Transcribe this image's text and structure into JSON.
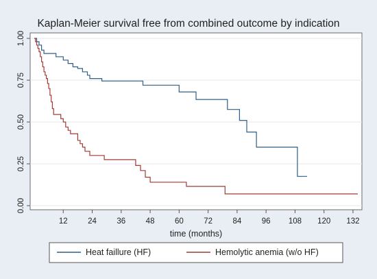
{
  "chart_data": {
    "type": "line",
    "title": "Kaplan-Meier survival free from combined outcome by indication",
    "xlabel": "time (months)",
    "ylabel": "",
    "xlim": [
      0,
      134
    ],
    "ylim": [
      0,
      1
    ],
    "x_ticks": [
      12,
      24,
      36,
      48,
      60,
      72,
      84,
      96,
      108,
      120,
      132
    ],
    "y_ticks": [
      0,
      0.25,
      0.5,
      0.75,
      1
    ],
    "y_tick_labels": [
      "0.00",
      "0.25",
      "0.50",
      "0.75",
      "1.00"
    ],
    "grid": true,
    "legend_position": "bottom",
    "series": [
      {
        "name": "Heat faillure (HF)",
        "color": "#2e5e8a",
        "points": [
          [
            0,
            1.0
          ],
          [
            1,
            0.98
          ],
          [
            2,
            0.96
          ],
          [
            3,
            0.93
          ],
          [
            4,
            0.91
          ],
          [
            9,
            0.89
          ],
          [
            12,
            0.87
          ],
          [
            14,
            0.85
          ],
          [
            16,
            0.83
          ],
          [
            18,
            0.82
          ],
          [
            20,
            0.8
          ],
          [
            22,
            0.78
          ],
          [
            23,
            0.76
          ],
          [
            28,
            0.745
          ],
          [
            45,
            0.72
          ],
          [
            60,
            0.68
          ],
          [
            67,
            0.635
          ],
          [
            80,
            0.575
          ],
          [
            85,
            0.51
          ],
          [
            88,
            0.44
          ],
          [
            92,
            0.35
          ],
          [
            109,
            0.175
          ],
          [
            113,
            0.175
          ]
        ]
      },
      {
        "name": "Hemolytic anemia (w/o HF)",
        "color": "#a23a35",
        "points": [
          [
            0,
            1.0
          ],
          [
            0.5,
            0.98
          ],
          [
            1,
            0.96
          ],
          [
            1.5,
            0.94
          ],
          [
            2,
            0.92
          ],
          [
            2.5,
            0.89
          ],
          [
            3,
            0.86
          ],
          [
            3.5,
            0.83
          ],
          [
            4,
            0.8
          ],
          [
            4.5,
            0.78
          ],
          [
            5,
            0.76
          ],
          [
            5.5,
            0.73
          ],
          [
            6,
            0.7
          ],
          [
            6.5,
            0.66
          ],
          [
            7,
            0.62
          ],
          [
            7.5,
            0.58
          ],
          [
            8,
            0.545
          ],
          [
            11,
            0.52
          ],
          [
            12,
            0.5
          ],
          [
            13,
            0.47
          ],
          [
            14,
            0.45
          ],
          [
            15,
            0.43
          ],
          [
            18,
            0.39
          ],
          [
            19,
            0.37
          ],
          [
            20,
            0.35
          ],
          [
            21,
            0.325
          ],
          [
            23,
            0.3
          ],
          [
            29,
            0.275
          ],
          [
            42,
            0.24
          ],
          [
            44,
            0.21
          ],
          [
            46,
            0.17
          ],
          [
            48,
            0.14
          ],
          [
            63,
            0.115
          ],
          [
            79,
            0.07
          ],
          [
            134,
            0.07
          ]
        ]
      }
    ]
  }
}
